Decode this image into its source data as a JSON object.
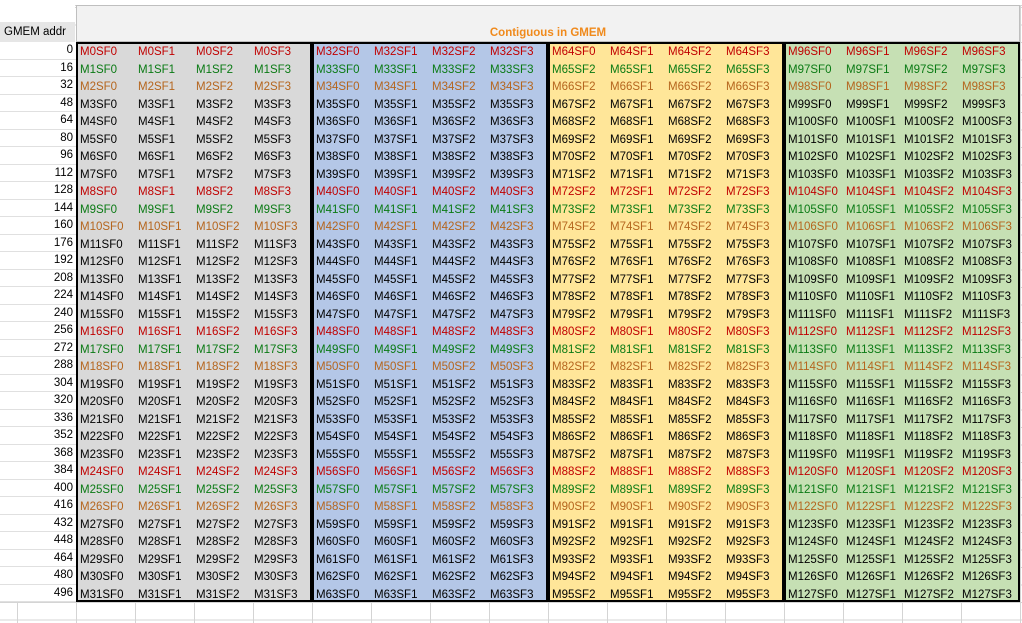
{
  "sheet": {
    "column_a_header": "GMEM addr",
    "merged_header": "Contiguous in GMEM",
    "header_color": "#f08a1c"
  },
  "palette": {
    "red": "#c00000",
    "green": "#0a7a14",
    "orange": "#b5651d",
    "black": "#000000"
  },
  "blocks": [
    {
      "name": "gray",
      "background": "#d9d9d9"
    },
    {
      "name": "blue",
      "background": "#b4c7e7"
    },
    {
      "name": "yellow",
      "background": "#ffe699"
    },
    {
      "name": "green",
      "background": "#c6e0b4"
    }
  ],
  "rows": [
    {
      "addr": "0",
      "color": "red",
      "cells": [
        "M0SF0",
        "M0SF1",
        "M0SF2",
        "M0SF3",
        "M32SF0",
        "M32SF1",
        "M32SF2",
        "M32SF3",
        "M64SF0",
        "M64SF1",
        "M64SF2",
        "M64SF3",
        "M96SF0",
        "M96SF1",
        "M96SF2",
        "M96SF3"
      ]
    },
    {
      "addr": "16",
      "color": "green",
      "cells": [
        "M1SF0",
        "M1SF1",
        "M1SF2",
        "M1SF3",
        "M33SF0",
        "M33SF1",
        "M33SF2",
        "M33SF3",
        "M65SF2",
        "M65SF1",
        "M65SF2",
        "M65SF3",
        "M97SF0",
        "M97SF1",
        "M97SF2",
        "M97SF3"
      ]
    },
    {
      "addr": "32",
      "color": "orange",
      "cells": [
        "M2SF0",
        "M2SF1",
        "M2SF2",
        "M2SF3",
        "M34SF0",
        "M34SF1",
        "M34SF2",
        "M34SF3",
        "M66SF2",
        "M66SF1",
        "M66SF2",
        "M66SF3",
        "M98SF0",
        "M98SF1",
        "M98SF2",
        "M98SF3"
      ]
    },
    {
      "addr": "48",
      "color": "black",
      "cells": [
        "M3SF0",
        "M3SF1",
        "M3SF2",
        "M3SF3",
        "M35SF0",
        "M35SF1",
        "M35SF2",
        "M35SF3",
        "M67SF2",
        "M67SF1",
        "M67SF2",
        "M67SF3",
        "M99SF0",
        "M99SF1",
        "M99SF2",
        "M99SF3"
      ]
    },
    {
      "addr": "64",
      "color": "black",
      "cells": [
        "M4SF0",
        "M4SF1",
        "M4SF2",
        "M4SF3",
        "M36SF0",
        "M36SF1",
        "M36SF2",
        "M36SF3",
        "M68SF2",
        "M68SF1",
        "M68SF2",
        "M68SF3",
        "M100SF0",
        "M100SF1",
        "M100SF2",
        "M100SF3"
      ]
    },
    {
      "addr": "80",
      "color": "black",
      "cells": [
        "M5SF0",
        "M5SF1",
        "M5SF2",
        "M5SF3",
        "M37SF0",
        "M37SF1",
        "M37SF2",
        "M37SF3",
        "M69SF2",
        "M69SF1",
        "M69SF2",
        "M69SF3",
        "M101SF0",
        "M101SF1",
        "M101SF2",
        "M101SF3"
      ]
    },
    {
      "addr": "96",
      "color": "black",
      "cells": [
        "M6SF0",
        "M6SF1",
        "M6SF2",
        "M6SF3",
        "M38SF0",
        "M38SF1",
        "M38SF2",
        "M38SF3",
        "M70SF2",
        "M70SF1",
        "M70SF2",
        "M70SF3",
        "M102SF0",
        "M102SF1",
        "M102SF2",
        "M102SF3"
      ]
    },
    {
      "addr": "112",
      "color": "black",
      "cells": [
        "M7SF0",
        "M7SF1",
        "M7SF2",
        "M7SF3",
        "M39SF0",
        "M39SF1",
        "M39SF2",
        "M39SF3",
        "M71SF2",
        "M71SF1",
        "M71SF2",
        "M71SF3",
        "M103SF0",
        "M103SF1",
        "M103SF2",
        "M103SF3"
      ]
    },
    {
      "addr": "128",
      "color": "red",
      "cells": [
        "M8SF0",
        "M8SF1",
        "M8SF2",
        "M8SF3",
        "M40SF0",
        "M40SF1",
        "M40SF2",
        "M40SF3",
        "M72SF2",
        "M72SF1",
        "M72SF2",
        "M72SF3",
        "M104SF0",
        "M104SF1",
        "M104SF2",
        "M104SF3"
      ]
    },
    {
      "addr": "144",
      "color": "green",
      "cells": [
        "M9SF0",
        "M9SF1",
        "M9SF2",
        "M9SF3",
        "M41SF0",
        "M41SF1",
        "M41SF2",
        "M41SF3",
        "M73SF2",
        "M73SF1",
        "M73SF2",
        "M73SF3",
        "M105SF0",
        "M105SF1",
        "M105SF2",
        "M105SF3"
      ]
    },
    {
      "addr": "160",
      "color": "orange",
      "cells": [
        "M10SF0",
        "M10SF1",
        "M10SF2",
        "M10SF3",
        "M42SF0",
        "M42SF1",
        "M42SF2",
        "M42SF3",
        "M74SF2",
        "M74SF1",
        "M74SF2",
        "M74SF3",
        "M106SF0",
        "M106SF1",
        "M106SF2",
        "M106SF3"
      ]
    },
    {
      "addr": "176",
      "color": "black",
      "cells": [
        "M11SF0",
        "M11SF1",
        "M11SF2",
        "M11SF3",
        "M43SF0",
        "M43SF1",
        "M43SF2",
        "M43SF3",
        "M75SF2",
        "M75SF1",
        "M75SF2",
        "M75SF3",
        "M107SF0",
        "M107SF1",
        "M107SF2",
        "M107SF3"
      ]
    },
    {
      "addr": "192",
      "color": "black",
      "cells": [
        "M12SF0",
        "M12SF1",
        "M12SF2",
        "M12SF3",
        "M44SF0",
        "M44SF1",
        "M44SF2",
        "M44SF3",
        "M76SF2",
        "M76SF1",
        "M76SF2",
        "M76SF3",
        "M108SF0",
        "M108SF1",
        "M108SF2",
        "M108SF3"
      ]
    },
    {
      "addr": "208",
      "color": "black",
      "cells": [
        "M13SF0",
        "M13SF1",
        "M13SF2",
        "M13SF3",
        "M45SF0",
        "M45SF1",
        "M45SF2",
        "M45SF3",
        "M77SF2",
        "M77SF1",
        "M77SF2",
        "M77SF3",
        "M109SF0",
        "M109SF1",
        "M109SF2",
        "M109SF3"
      ]
    },
    {
      "addr": "224",
      "color": "black",
      "cells": [
        "M14SF0",
        "M14SF1",
        "M14SF2",
        "M14SF3",
        "M46SF0",
        "M46SF1",
        "M46SF2",
        "M46SF3",
        "M78SF2",
        "M78SF1",
        "M78SF2",
        "M78SF3",
        "M110SF0",
        "M110SF1",
        "M110SF2",
        "M110SF3"
      ]
    },
    {
      "addr": "240",
      "color": "black",
      "cells": [
        "M15SF0",
        "M15SF1",
        "M15SF2",
        "M15SF3",
        "M47SF0",
        "M47SF1",
        "M47SF2",
        "M47SF3",
        "M79SF2",
        "M79SF1",
        "M79SF2",
        "M79SF3",
        "M111SF0",
        "M111SF1",
        "M111SF2",
        "M111SF3"
      ]
    },
    {
      "addr": "256",
      "color": "red",
      "cells": [
        "M16SF0",
        "M16SF1",
        "M16SF2",
        "M16SF3",
        "M48SF0",
        "M48SF1",
        "M48SF2",
        "M48SF3",
        "M80SF2",
        "M80SF1",
        "M80SF2",
        "M80SF3",
        "M112SF0",
        "M112SF1",
        "M112SF2",
        "M112SF3"
      ]
    },
    {
      "addr": "272",
      "color": "green",
      "cells": [
        "M17SF0",
        "M17SF1",
        "M17SF2",
        "M17SF3",
        "M49SF0",
        "M49SF1",
        "M49SF2",
        "M49SF3",
        "M81SF2",
        "M81SF1",
        "M81SF2",
        "M81SF3",
        "M113SF0",
        "M113SF1",
        "M113SF2",
        "M113SF3"
      ]
    },
    {
      "addr": "288",
      "color": "orange",
      "cells": [
        "M18SF0",
        "M18SF1",
        "M18SF2",
        "M18SF3",
        "M50SF0",
        "M50SF1",
        "M50SF2",
        "M50SF3",
        "M82SF2",
        "M82SF1",
        "M82SF2",
        "M82SF3",
        "M114SF0",
        "M114SF1",
        "M114SF2",
        "M114SF3"
      ]
    },
    {
      "addr": "304",
      "color": "black",
      "cells": [
        "M19SF0",
        "M19SF1",
        "M19SF2",
        "M19SF3",
        "M51SF0",
        "M51SF1",
        "M51SF2",
        "M51SF3",
        "M83SF2",
        "M83SF1",
        "M83SF2",
        "M83SF3",
        "M115SF0",
        "M115SF1",
        "M115SF2",
        "M115SF3"
      ]
    },
    {
      "addr": "320",
      "color": "black",
      "cells": [
        "M20SF0",
        "M20SF1",
        "M20SF2",
        "M20SF3",
        "M52SF0",
        "M52SF1",
        "M52SF2",
        "M52SF3",
        "M84SF2",
        "M84SF1",
        "M84SF2",
        "M84SF3",
        "M116SF0",
        "M116SF1",
        "M116SF2",
        "M116SF3"
      ]
    },
    {
      "addr": "336",
      "color": "black",
      "cells": [
        "M21SF0",
        "M21SF1",
        "M21SF2",
        "M21SF3",
        "M53SF0",
        "M53SF1",
        "M53SF2",
        "M53SF3",
        "M85SF2",
        "M85SF1",
        "M85SF2",
        "M85SF3",
        "M117SF0",
        "M117SF1",
        "M117SF2",
        "M117SF3"
      ]
    },
    {
      "addr": "352",
      "color": "black",
      "cells": [
        "M22SF0",
        "M22SF1",
        "M22SF2",
        "M22SF3",
        "M54SF0",
        "M54SF1",
        "M54SF2",
        "M54SF3",
        "M86SF2",
        "M86SF1",
        "M86SF2",
        "M86SF3",
        "M118SF0",
        "M118SF1",
        "M118SF2",
        "M118SF3"
      ]
    },
    {
      "addr": "368",
      "color": "black",
      "cells": [
        "M23SF0",
        "M23SF1",
        "M23SF2",
        "M23SF3",
        "M55SF0",
        "M55SF1",
        "M55SF2",
        "M55SF3",
        "M87SF2",
        "M87SF1",
        "M87SF2",
        "M87SF3",
        "M119SF0",
        "M119SF1",
        "M119SF2",
        "M119SF3"
      ]
    },
    {
      "addr": "384",
      "color": "red",
      "cells": [
        "M24SF0",
        "M24SF1",
        "M24SF2",
        "M24SF3",
        "M56SF0",
        "M56SF1",
        "M56SF2",
        "M56SF3",
        "M88SF2",
        "M88SF1",
        "M88SF2",
        "M88SF3",
        "M120SF0",
        "M120SF1",
        "M120SF2",
        "M120SF3"
      ]
    },
    {
      "addr": "400",
      "color": "green",
      "cells": [
        "M25SF0",
        "M25SF1",
        "M25SF2",
        "M25SF3",
        "M57SF0",
        "M57SF1",
        "M57SF2",
        "M57SF3",
        "M89SF2",
        "M89SF1",
        "M89SF2",
        "M89SF3",
        "M121SF0",
        "M121SF1",
        "M121SF2",
        "M121SF3"
      ]
    },
    {
      "addr": "416",
      "color": "orange",
      "cells": [
        "M26SF0",
        "M26SF1",
        "M26SF2",
        "M26SF3",
        "M58SF0",
        "M58SF1",
        "M58SF2",
        "M58SF3",
        "M90SF2",
        "M90SF1",
        "M90SF2",
        "M90SF3",
        "M122SF0",
        "M122SF1",
        "M122SF2",
        "M122SF3"
      ]
    },
    {
      "addr": "432",
      "color": "black",
      "cells": [
        "M27SF0",
        "M27SF1",
        "M27SF2",
        "M27SF3",
        "M59SF0",
        "M59SF1",
        "M59SF2",
        "M59SF3",
        "M91SF2",
        "M91SF1",
        "M91SF2",
        "M91SF3",
        "M123SF0",
        "M123SF1",
        "M123SF2",
        "M123SF3"
      ]
    },
    {
      "addr": "448",
      "color": "black",
      "cells": [
        "M28SF0",
        "M28SF1",
        "M28SF2",
        "M28SF3",
        "M60SF0",
        "M60SF1",
        "M60SF2",
        "M60SF3",
        "M92SF2",
        "M92SF1",
        "M92SF2",
        "M92SF3",
        "M124SF0",
        "M124SF1",
        "M124SF2",
        "M124SF3"
      ]
    },
    {
      "addr": "464",
      "color": "black",
      "cells": [
        "M29SF0",
        "M29SF1",
        "M29SF2",
        "M29SF3",
        "M61SF0",
        "M61SF1",
        "M61SF2",
        "M61SF3",
        "M93SF2",
        "M93SF1",
        "M93SF2",
        "M93SF3",
        "M125SF0",
        "M125SF1",
        "M125SF2",
        "M125SF3"
      ]
    },
    {
      "addr": "480",
      "color": "black",
      "cells": [
        "M30SF0",
        "M30SF1",
        "M30SF2",
        "M30SF3",
        "M62SF0",
        "M62SF1",
        "M62SF2",
        "M62SF3",
        "M94SF2",
        "M94SF1",
        "M94SF2",
        "M94SF3",
        "M126SF0",
        "M126SF1",
        "M126SF2",
        "M126SF3"
      ]
    },
    {
      "addr": "496",
      "color": "black",
      "cells": [
        "M31SF0",
        "M31SF1",
        "M31SF2",
        "M31SF3",
        "M63SF0",
        "M63SF1",
        "M63SF2",
        "M63SF3",
        "M95SF2",
        "M95SF1",
        "M95SF2",
        "M95SF3",
        "M127SF0",
        "M127SF1",
        "M127SF2",
        "M127SF3"
      ]
    }
  ]
}
